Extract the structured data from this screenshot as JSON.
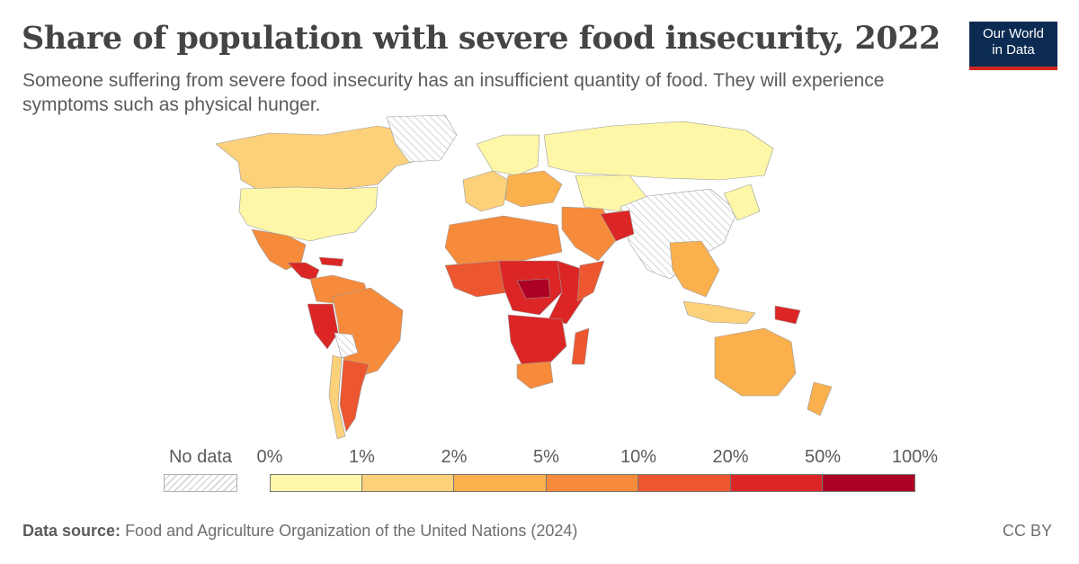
{
  "header": {
    "title": "Share of population with severe food insecurity, 2022",
    "subtitle": "Someone suffering from severe food insecurity has an insufficient quantity of food. They will experience symptoms such as physical hunger."
  },
  "logo": {
    "line1": "Our World",
    "line2": "in Data"
  },
  "legend": {
    "no_data_label": "No data",
    "thresholds": [
      "0%",
      "1%",
      "2%",
      "5%",
      "10%",
      "20%",
      "50%",
      "100%"
    ],
    "colors": [
      "#fef7a8",
      "#fdd07a",
      "#fbb04e",
      "#f68b3b",
      "#ec5730",
      "#dc2626",
      "#ae0025"
    ]
  },
  "footer": {
    "source_label": "Data source:",
    "source_text": "Food and Agriculture Organization of the United Nations (2024)",
    "license": "CC BY"
  },
  "map_regions": [
    {
      "name": "Canada",
      "bin": 1
    },
    {
      "name": "United States",
      "bin": 0
    },
    {
      "name": "Greenland",
      "bin": -1
    },
    {
      "name": "Mexico",
      "bin": 3
    },
    {
      "name": "Central America",
      "bin": 5
    },
    {
      "name": "Caribbean",
      "bin": 5
    },
    {
      "name": "Colombia / Venezuela",
      "bin": 3
    },
    {
      "name": "Peru",
      "bin": 5
    },
    {
      "name": "Brazil",
      "bin": 3
    },
    {
      "name": "Bolivia",
      "bin": -1
    },
    {
      "name": "Argentina",
      "bin": 4
    },
    {
      "name": "Chile",
      "bin": 1
    },
    {
      "name": "Northern Europe",
      "bin": 0
    },
    {
      "name": "Western Europe",
      "bin": 1
    },
    {
      "name": "Eastern Europe",
      "bin": 2
    },
    {
      "name": "Russia",
      "bin": 0
    },
    {
      "name": "Central Asia",
      "bin": 0
    },
    {
      "name": "China / India",
      "bin": -1
    },
    {
      "name": "Middle East",
      "bin": 3
    },
    {
      "name": "Afghanistan",
      "bin": 5
    },
    {
      "name": "North Africa",
      "bin": 3
    },
    {
      "name": "West Africa",
      "bin": 4
    },
    {
      "name": "Central Africa",
      "bin": 5
    },
    {
      "name": "Central African Republic",
      "bin": 6
    },
    {
      "name": "East Africa",
      "bin": 5
    },
    {
      "name": "Somalia",
      "bin": 4
    },
    {
      "name": "Southern Africa",
      "bin": 5
    },
    {
      "name": "South Africa",
      "bin": 3
    },
    {
      "name": "Madagascar",
      "bin": 4
    },
    {
      "name": "Southeast Asia",
      "bin": 2
    },
    {
      "name": "Indonesia",
      "bin": 1
    },
    {
      "name": "Papua New Guinea",
      "bin": 5
    },
    {
      "name": "Japan / Korea",
      "bin": 0
    },
    {
      "name": "Australia",
      "bin": 2
    },
    {
      "name": "New Zealand",
      "bin": 2
    }
  ]
}
